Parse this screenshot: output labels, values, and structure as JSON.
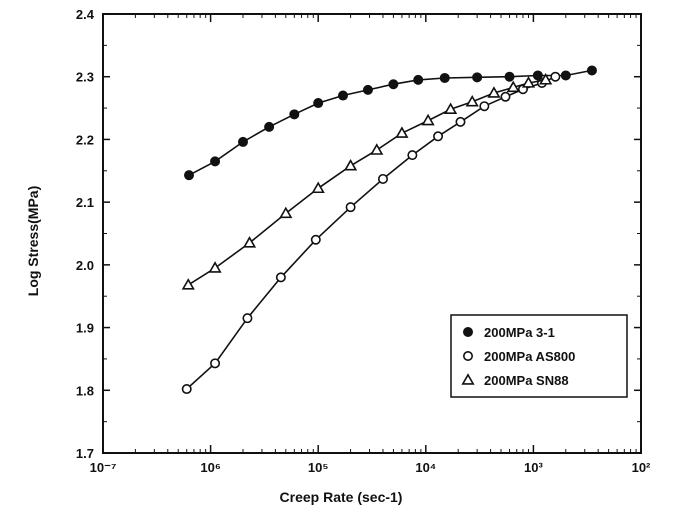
{
  "chart_data": {
    "type": "scatter",
    "title": "",
    "xlabel": "Creep Rate (sec-1)",
    "ylabel": "Log Stress(MPa)",
    "xscale": "log",
    "xlim": [
      1e-07,
      0.01
    ],
    "ylim": [
      1.7,
      2.4
    ],
    "x_tick_labels": [
      "10⁻⁷",
      "10⁶",
      "10⁵",
      "10⁴",
      "10³",
      "10²"
    ],
    "y_tick_labels": [
      "1.7",
      "1.8",
      "1.9",
      "2.0",
      "2.1",
      "2.2",
      "2.3",
      "2.4"
    ],
    "grid": false,
    "legend_position": "lower-right",
    "series": [
      {
        "name": "200MPa 3-1",
        "marker": "filled-circle",
        "points": [
          [
            6.3e-07,
            2.143
          ],
          [
            1.1e-06,
            2.165
          ],
          [
            2e-06,
            2.196
          ],
          [
            3.5e-06,
            2.22
          ],
          [
            6e-06,
            2.24
          ],
          [
            1e-05,
            2.258
          ],
          [
            1.7e-05,
            2.27
          ],
          [
            2.9e-05,
            2.279
          ],
          [
            5e-05,
            2.288
          ],
          [
            8.5e-05,
            2.295
          ],
          [
            0.00015,
            2.298
          ],
          [
            0.0003,
            2.299
          ],
          [
            0.0006,
            2.3
          ],
          [
            0.0011,
            2.302
          ],
          [
            0.002,
            2.302
          ],
          [
            0.0035,
            2.31
          ]
        ]
      },
      {
        "name": "200MPa AS800",
        "marker": "open-circle",
        "points": [
          [
            6e-07,
            1.802
          ],
          [
            1.1e-06,
            1.843
          ],
          [
            2.2e-06,
            1.915
          ],
          [
            4.5e-06,
            1.98
          ],
          [
            9.5e-06,
            2.04
          ],
          [
            2e-05,
            2.092
          ],
          [
            4e-05,
            2.137
          ],
          [
            7.5e-05,
            2.175
          ],
          [
            0.00013,
            2.205
          ],
          [
            0.00021,
            2.228
          ],
          [
            0.00035,
            2.253
          ],
          [
            0.00055,
            2.268
          ],
          [
            0.0008,
            2.28
          ],
          [
            0.0012,
            2.29
          ],
          [
            0.0016,
            2.3
          ]
        ]
      },
      {
        "name": "200MPa SN88",
        "marker": "open-triangle",
        "points": [
          [
            6.2e-07,
            1.968
          ],
          [
            1.1e-06,
            1.995
          ],
          [
            2.3e-06,
            2.035
          ],
          [
            5e-06,
            2.082
          ],
          [
            1e-05,
            2.122
          ],
          [
            2e-05,
            2.158
          ],
          [
            3.5e-05,
            2.183
          ],
          [
            6e-05,
            2.21
          ],
          [
            0.000105,
            2.23
          ],
          [
            0.00017,
            2.248
          ],
          [
            0.00027,
            2.26
          ],
          [
            0.00043,
            2.274
          ],
          [
            0.00065,
            2.283
          ],
          [
            0.0009,
            2.29
          ],
          [
            0.0013,
            2.295
          ]
        ]
      }
    ]
  }
}
